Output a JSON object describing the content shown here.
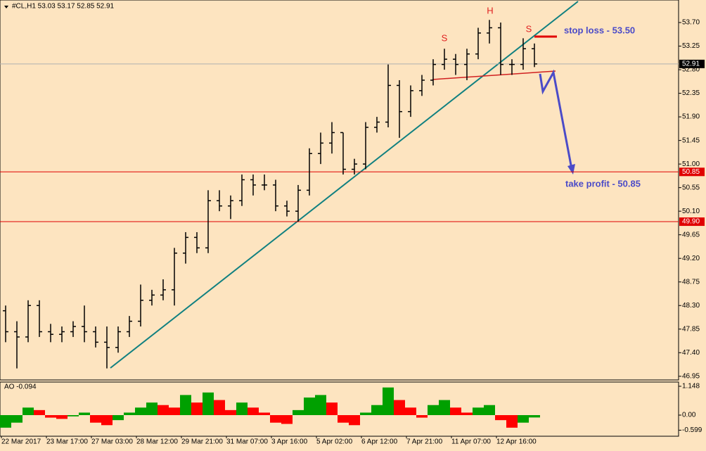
{
  "chart_data": {
    "type": "ohlc",
    "title": "#CL,H1  53.03 53.17 52.85 52.91",
    "categories": [
      "22 Mar 2017",
      null,
      null,
      null,
      "23 Mar 17:00",
      null,
      null,
      null,
      "27 Mar 03:00",
      null,
      null,
      null,
      "28 Mar 12:00",
      null,
      null,
      null,
      "29 Mar 21:00",
      null,
      null,
      null,
      "31 Mar 07:00",
      null,
      null,
      null,
      "3 Apr 16:00",
      null,
      null,
      null,
      "5 Apr 02:00",
      null,
      null,
      null,
      "6 Apr 12:00",
      null,
      null,
      null,
      "7 Apr 21:00",
      null,
      null,
      null,
      "11 Apr 07:00",
      null,
      null,
      null,
      "12 Apr 16:00",
      null,
      null,
      null
    ],
    "ohlc": [
      [
        48.2,
        48.3,
        47.6,
        47.8
      ],
      [
        47.8,
        48.0,
        47.1,
        47.7
      ],
      [
        47.7,
        48.4,
        47.6,
        48.3
      ],
      [
        48.3,
        48.4,
        47.7,
        47.8
      ],
      [
        47.8,
        47.95,
        47.6,
        47.75
      ],
      [
        47.75,
        47.9,
        47.6,
        47.8
      ],
      [
        47.8,
        48.0,
        47.7,
        47.9
      ],
      [
        47.9,
        48.3,
        47.6,
        47.8
      ],
      [
        47.8,
        47.9,
        47.5,
        47.6
      ],
      [
        47.6,
        47.9,
        47.1,
        47.5
      ],
      [
        47.5,
        47.9,
        47.4,
        47.8
      ],
      [
        47.8,
        48.1,
        47.7,
        48.0
      ],
      [
        48.0,
        48.7,
        47.9,
        48.4
      ],
      [
        48.4,
        48.6,
        48.3,
        48.5
      ],
      [
        48.5,
        48.8,
        48.4,
        48.6
      ],
      [
        48.6,
        49.4,
        48.3,
        49.3
      ],
      [
        49.3,
        49.7,
        49.1,
        49.6
      ],
      [
        49.6,
        49.7,
        49.3,
        49.4
      ],
      [
        49.4,
        50.5,
        49.3,
        50.3
      ],
      [
        50.3,
        50.5,
        50.1,
        50.2
      ],
      [
        50.2,
        50.4,
        49.95,
        50.3
      ],
      [
        50.3,
        50.8,
        50.2,
        50.7
      ],
      [
        50.7,
        50.8,
        50.4,
        50.6
      ],
      [
        50.6,
        50.8,
        50.5,
        50.6
      ],
      [
        50.6,
        50.7,
        50.1,
        50.2
      ],
      [
        50.2,
        50.3,
        50.0,
        50.1
      ],
      [
        50.1,
        50.6,
        49.9,
        50.5
      ],
      [
        50.5,
        51.3,
        50.4,
        51.2
      ],
      [
        51.2,
        51.6,
        51.0,
        51.4
      ],
      [
        51.4,
        51.8,
        51.2,
        51.6
      ],
      [
        51.6,
        51.6,
        50.8,
        50.9
      ],
      [
        50.9,
        51.1,
        50.8,
        51.0
      ],
      [
        51.0,
        51.8,
        50.9,
        51.7
      ],
      [
        51.7,
        51.9,
        51.6,
        51.8
      ],
      [
        51.8,
        52.9,
        51.7,
        52.5
      ],
      [
        52.5,
        52.6,
        51.5,
        52.0
      ],
      [
        52.0,
        52.5,
        51.9,
        52.4
      ],
      [
        52.4,
        52.7,
        52.3,
        52.6
      ],
      [
        52.6,
        53.0,
        52.5,
        52.9
      ],
      [
        52.9,
        53.2,
        52.8,
        53.0
      ],
      [
        53.0,
        53.1,
        52.7,
        52.9
      ],
      [
        52.9,
        53.2,
        52.6,
        53.1
      ],
      [
        53.1,
        53.6,
        53.0,
        53.5
      ],
      [
        53.5,
        53.75,
        53.3,
        53.6
      ],
      [
        53.6,
        53.7,
        52.7,
        52.9
      ],
      [
        52.9,
        53.0,
        52.7,
        52.9
      ],
      [
        52.9,
        53.4,
        52.8,
        53.2
      ],
      [
        53.2,
        53.3,
        52.85,
        52.91
      ]
    ],
    "color": "#000000",
    "ylim": [
      46.88,
      54.13
    ],
    "yticks": [
      {
        "value": 53.7,
        "label": "53.70"
      },
      53.25,
      {
        "value": 52.8,
        "label": "52.80"
      },
      52.35,
      {
        "value": 51.9,
        "label": "51.90"
      },
      51.45,
      {
        "value": 51,
        "label": "51.00"
      },
      50.55,
      {
        "value": 50.1,
        "label": "50.10"
      },
      49.65,
      {
        "value": 49.2,
        "label": "49.20"
      },
      48.75,
      {
        "value": 48.3,
        "label": "48.30"
      },
      47.85,
      {
        "value": 47.4,
        "label": "47.40"
      },
      46.95
    ],
    "last_price": 52.91,
    "levels": [
      {
        "value": 50.85,
        "color": "#e00000"
      },
      {
        "value": 49.9,
        "label": "49.90",
        "color": "#e00000"
      }
    ],
    "annotations": {
      "stop_loss": "stop loss - 53.50",
      "take_profit": "take profit - 50.85",
      "left_shoulder": "S",
      "head": "H",
      "right_shoulder": "S"
    },
    "indicator": {
      "type": "bar",
      "title": "AO -0.094",
      "up_color": "#00a000",
      "down_color": "#ff0000",
      "values": [
        -0.5,
        -0.3,
        0.3,
        0.2,
        -0.1,
        -0.15,
        -0.05,
        0.1,
        -0.3,
        -0.4,
        -0.2,
        0.1,
        0.3,
        0.5,
        0.4,
        0.3,
        0.8,
        0.5,
        0.9,
        0.6,
        0.2,
        0.5,
        0.3,
        0.1,
        -0.3,
        -0.35,
        0.2,
        0.7,
        0.8,
        0.5,
        -0.3,
        -0.4,
        0.1,
        0.4,
        1.1,
        0.6,
        0.3,
        -0.1,
        0.4,
        0.6,
        0.3,
        0.1,
        0.3,
        0.4,
        -0.2,
        -0.5,
        -0.3,
        -0.094
      ],
      "ylim": [
        -0.84,
        1.316
      ],
      "yticks": [
        1.148,
        {
          "value": 0,
          "label": "0.00"
        },
        -0.599
      ]
    }
  }
}
